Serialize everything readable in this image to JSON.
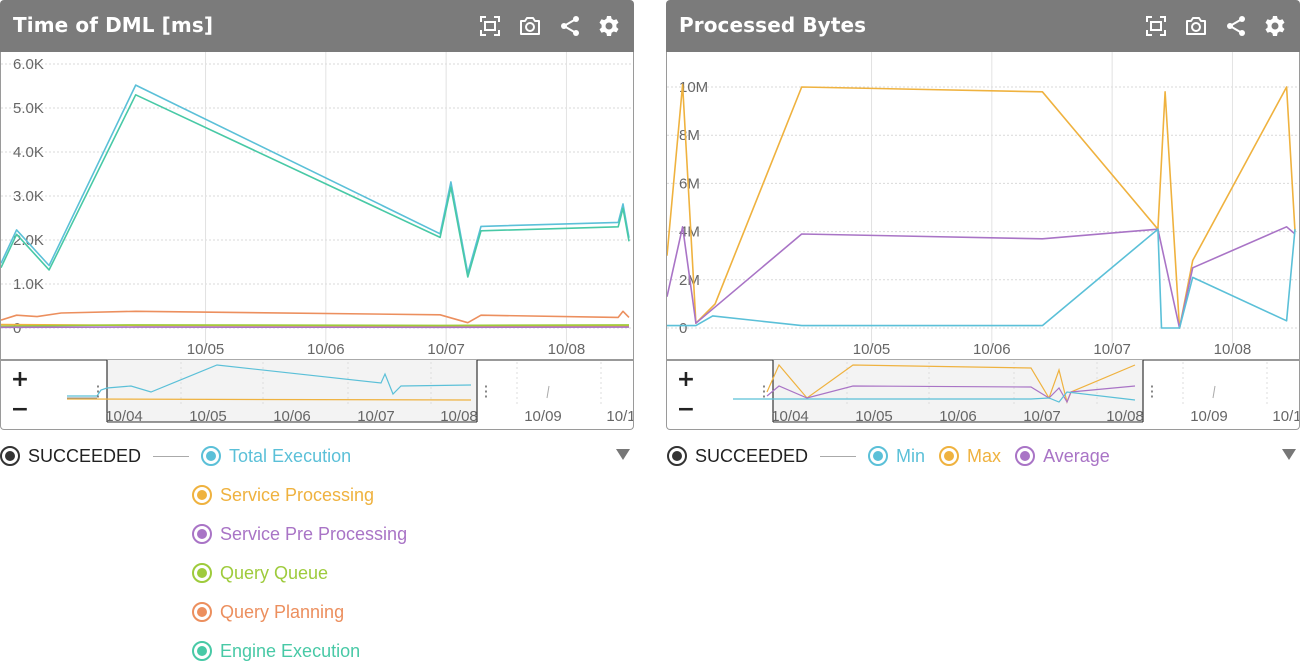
{
  "panels": [
    {
      "title": "Time of DML [ms]",
      "toolbar": {
        "fullscreen_icon": "fullscreen-icon",
        "camera_icon": "camera-icon",
        "share_icon": "share-icon",
        "settings_icon": "gear-icon"
      },
      "zoom": {
        "plus": "+",
        "minus": "−"
      },
      "navigator_dates": [
        "10/04",
        "10/05",
        "10/06",
        "10/07",
        "10/08",
        "10/09",
        "10/1"
      ],
      "legend": {
        "status": "SUCCEEDED",
        "items": [
          {
            "label": "Total Execution",
            "color": "#5bc0d8"
          },
          {
            "label": "Service Processing",
            "color": "#efb23f"
          },
          {
            "label": "Service Pre Processing",
            "color": "#a974c6"
          },
          {
            "label": "Query Queue",
            "color": "#9ecb3c"
          },
          {
            "label": "Query Planning",
            "color": "#ec8f5e"
          },
          {
            "label": "Engine Execution",
            "color": "#48c9a6"
          }
        ]
      }
    },
    {
      "title": "Processed Bytes",
      "toolbar": {
        "fullscreen_icon": "fullscreen-icon",
        "camera_icon": "camera-icon",
        "share_icon": "share-icon",
        "settings_icon": "gear-icon"
      },
      "zoom": {
        "plus": "+",
        "minus": "−"
      },
      "navigator_dates": [
        "10/04",
        "10/05",
        "10/06",
        "10/07",
        "10/08",
        "10/09",
        "10/1"
      ],
      "legend": {
        "status": "SUCCEEDED",
        "items": [
          {
            "label": "Min",
            "color": "#5bc0d8"
          },
          {
            "label": "Max",
            "color": "#efb23f"
          },
          {
            "label": "Average",
            "color": "#a974c6"
          }
        ]
      }
    }
  ],
  "chart_data": [
    {
      "type": "line",
      "ylim": [
        0,
        6000
      ],
      "yticks": [
        0,
        1000,
        2000,
        3000,
        4000,
        5000,
        6000
      ],
      "ytick_labels": [
        "0",
        "1.0K",
        "2.0K",
        "3.0K",
        "4.0K",
        "5.0K",
        "6.0K"
      ],
      "xlim": [
        3.3,
        8.52
      ],
      "xticks": [
        5,
        6,
        7,
        8
      ],
      "xtick_labels": [
        "10/05",
        "10/06",
        "10/07",
        "10/08"
      ],
      "grid": true,
      "series": [
        {
          "name": "Total Execution",
          "color": "#5bc0d8",
          "x": [
            3.3,
            3.43,
            3.7,
            4.42,
            6.95,
            7.04,
            7.18,
            7.29,
            8.43,
            8.47,
            8.52
          ],
          "y": [
            1470,
            2230,
            1420,
            5520,
            2140,
            3320,
            1240,
            2310,
            2400,
            2820,
            2050
          ]
        },
        {
          "name": "Engine Execution",
          "color": "#48c9a6",
          "x": [
            3.3,
            3.43,
            3.7,
            4.42,
            6.95,
            7.04,
            7.18,
            7.29,
            8.43,
            8.47,
            8.52
          ],
          "y": [
            1370,
            2130,
            1320,
            5300,
            2060,
            3200,
            1160,
            2210,
            2300,
            2720,
            1970
          ]
        },
        {
          "name": "Query Planning",
          "color": "#ec8f5e",
          "x": [
            3.3,
            3.43,
            3.6,
            3.8,
            4.42,
            6.95,
            7.18,
            7.29,
            8.43,
            8.47,
            8.52
          ],
          "y": [
            180,
            290,
            260,
            340,
            380,
            300,
            120,
            290,
            240,
            380,
            240
          ]
        },
        {
          "name": "Service Processing",
          "color": "#efb23f",
          "x": [
            3.3,
            4.42,
            6.95,
            7.18,
            8.52
          ],
          "y": [
            80,
            60,
            50,
            30,
            50
          ]
        },
        {
          "name": "Query Queue",
          "color": "#9ecb3c",
          "x": [
            3.3,
            4.42,
            6.95,
            8.52
          ],
          "y": [
            40,
            70,
            60,
            70
          ]
        },
        {
          "name": "Service Pre Processing",
          "color": "#a974c6",
          "x": [
            3.3,
            4.42,
            6.95,
            8.52
          ],
          "y": [
            15,
            20,
            15,
            20
          ]
        }
      ]
    },
    {
      "type": "line",
      "ylim": [
        0,
        11000000
      ],
      "yticks": [
        0,
        2000000,
        4000000,
        6000000,
        8000000,
        10000000
      ],
      "ytick_labels": [
        "0",
        "2M",
        "4M",
        "6M",
        "8M",
        "10M"
      ],
      "xlim": [
        3.3,
        8.52
      ],
      "xticks": [
        5,
        6,
        7,
        8
      ],
      "xtick_labels": [
        "10/05",
        "10/06",
        "10/07",
        "10/08"
      ],
      "grid": true,
      "series": [
        {
          "name": "Max",
          "color": "#efb23f",
          "x": [
            3.3,
            3.43,
            3.54,
            3.7,
            4.42,
            6.42,
            7.38,
            7.44,
            7.56,
            7.67,
            8.45,
            8.52
          ],
          "y": [
            3000000,
            10100000,
            200000,
            1000000,
            10000000,
            9800000,
            4100000,
            9800000,
            0,
            2800000,
            10000000,
            4000000
          ]
        },
        {
          "name": "Average",
          "color": "#a974c6",
          "x": [
            3.3,
            3.43,
            3.54,
            4.42,
            6.42,
            7.38,
            7.56,
            7.67,
            8.45,
            8.52
          ],
          "y": [
            1300000,
            4200000,
            200000,
            3900000,
            3700000,
            4100000,
            0,
            2500000,
            4200000,
            3900000
          ]
        },
        {
          "name": "Min",
          "color": "#5bc0d8",
          "x": [
            3.3,
            3.54,
            3.68,
            4.42,
            6.42,
            7.38,
            7.41,
            7.56,
            7.67,
            8.45,
            8.52
          ],
          "y": [
            100000,
            100000,
            500000,
            100000,
            100000,
            4100000,
            0,
            0,
            2100000,
            300000,
            4100000
          ]
        }
      ]
    }
  ]
}
